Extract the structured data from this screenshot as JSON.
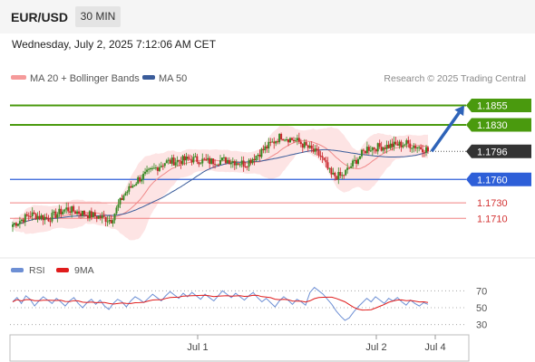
{
  "header": {
    "symbol": "EUR/USD",
    "timeframe": "30 MIN",
    "datetime": "Wednesday, July 2, 2025 7:12:06 AM CET"
  },
  "legend": {
    "ma20_label": "MA 20 + Bollinger Bands",
    "ma50_label": "MA 50",
    "copyright": "Research © 2025 Trading Central"
  },
  "colors": {
    "resistance": "#4a9a0e",
    "support": "#2e5fd8",
    "current": "#333333",
    "target_red": "#d33333",
    "candle_up": "#3a8a26",
    "candle_down": "#c8262c",
    "ma20": "#f08a8a",
    "ma50": "#3a5c9a",
    "bollinger_fill": "#fde1e1",
    "rsi": "#6d8fd4",
    "rsi_ma": "#e01c1c",
    "arrow": "#2e63b8"
  },
  "levels": [
    {
      "value": 1.1855,
      "label": "1.1855",
      "kind": "resistance"
    },
    {
      "value": 1.183,
      "label": "1.1830",
      "kind": "resistance"
    },
    {
      "value": 1.1796,
      "label": "1.1796",
      "kind": "current"
    },
    {
      "value": 1.176,
      "label": "1.1760",
      "kind": "support"
    },
    {
      "value": 1.173,
      "label": "1.1730",
      "kind": "target"
    },
    {
      "value": 1.171,
      "label": "1.1710",
      "kind": "target"
    }
  ],
  "chart_data": {
    "type": "candlestick",
    "title": "EUR/USD",
    "price_range": [
      1.1665,
      1.188
    ],
    "x_ticks": [
      "Jul 1",
      "Jul 2",
      "Jul 4"
    ],
    "series_price": {
      "start": 1.1702,
      "end": 1.1796
    },
    "projection": {
      "from": 1.1796,
      "to": 1.1855
    },
    "rsi": {
      "legend": [
        "RSI",
        "9MA"
      ],
      "ticks": [
        "70",
        "50",
        "30"
      ],
      "range": [
        20,
        80
      ],
      "values": [
        57,
        62,
        55,
        64,
        60,
        52,
        58,
        63,
        59,
        55,
        61,
        57,
        52,
        58,
        62,
        55,
        50,
        56,
        60,
        54,
        59,
        52,
        48,
        55,
        60,
        57,
        51,
        58,
        63,
        60,
        56,
        61,
        66,
        62,
        58,
        64,
        69,
        65,
        61,
        67,
        63,
        68,
        64,
        60,
        66,
        62,
        58,
        64,
        70,
        66,
        62,
        67,
        63,
        59,
        64,
        68,
        62,
        57,
        61,
        56,
        51,
        58,
        63,
        59,
        54,
        60,
        57,
        53,
        68,
        74,
        70,
        66,
        60,
        54,
        46,
        40,
        35,
        38,
        45,
        51,
        56,
        61,
        57,
        63,
        59,
        55,
        61,
        58,
        62,
        57,
        53,
        59,
        55,
        52,
        56,
        54
      ]
    }
  }
}
